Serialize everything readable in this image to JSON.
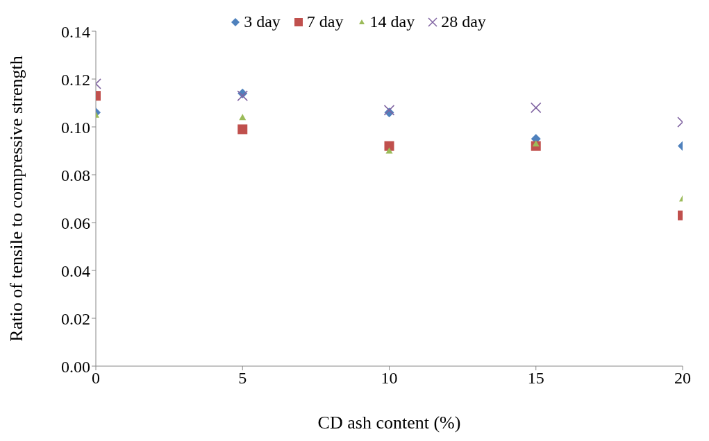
{
  "chart_data": {
    "type": "scatter",
    "xlabel": "CD ash content (%)",
    "ylabel": "Ratio of tensile to compressive strength",
    "x": [
      0,
      5,
      10,
      15,
      20
    ],
    "xlim": [
      0,
      20
    ],
    "xticks": [
      0,
      5,
      10,
      15,
      20
    ],
    "ylim": [
      0,
      0.14
    ],
    "yticks": [
      {
        "value": 0,
        "label": "0.00"
      },
      {
        "value": 0.02,
        "label": "0.02"
      },
      {
        "value": 0.04,
        "label": "0.04"
      },
      {
        "value": 0.06,
        "label": "0.06"
      },
      {
        "value": 0.08,
        "label": "0.08"
      },
      {
        "value": 0.1,
        "label": "0.10"
      },
      {
        "value": 0.12,
        "label": "0.12"
      },
      {
        "value": 0.14,
        "label": "0.14"
      }
    ],
    "legend": "top",
    "grid": false,
    "series": [
      {
        "name": "3 day",
        "color": "#4f81bd",
        "marker": "diamond",
        "values": [
          0.106,
          0.114,
          0.106,
          0.095,
          0.092
        ]
      },
      {
        "name": "7 day",
        "color": "#c0504d",
        "marker": "square",
        "values": [
          0.113,
          0.099,
          0.092,
          0.092,
          0.063
        ]
      },
      {
        "name": "14 day",
        "color": "#9bbb59",
        "marker": "triangle",
        "values": [
          0.105,
          0.104,
          0.09,
          0.093,
          0.07
        ]
      },
      {
        "name": "28 day",
        "color": "#8064a2",
        "marker": "cross",
        "values": [
          0.118,
          0.113,
          0.107,
          0.108,
          0.102
        ]
      }
    ]
  }
}
